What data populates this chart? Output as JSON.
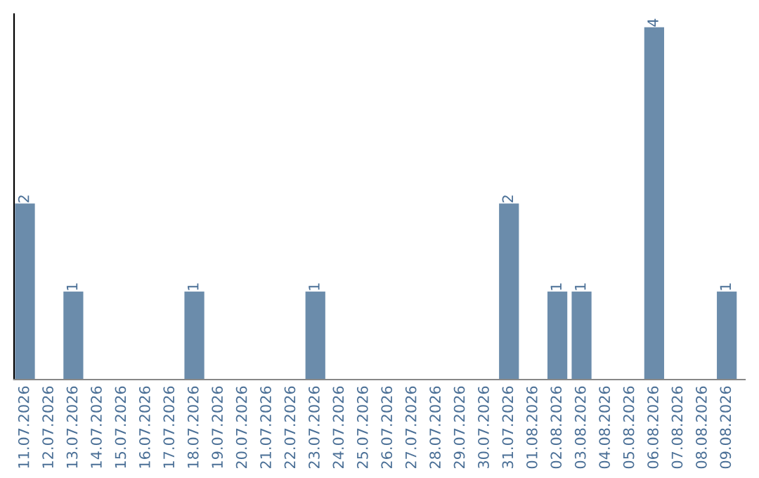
{
  "chart_data": {
    "type": "bar",
    "categories": [
      "11.07.2026",
      "12.07.2026",
      "13.07.2026",
      "14.07.2026",
      "15.07.2026",
      "16.07.2026",
      "17.07.2026",
      "18.07.2026",
      "19.07.2026",
      "20.07.2026",
      "21.07.2026",
      "22.07.2026",
      "23.07.2026",
      "24.07.2026",
      "25.07.2026",
      "26.07.2026",
      "27.07.2026",
      "28.07.2026",
      "29.07.2026",
      "30.07.2026",
      "31.07.2026",
      "01.08.2026",
      "02.08.2026",
      "03.08.2026",
      "04.08.2026",
      "05.08.2026",
      "06.08.2026",
      "07.08.2026",
      "08.08.2026",
      "09.08.2026"
    ],
    "values": [
      2,
      0,
      1,
      0,
      0,
      0,
      0,
      1,
      0,
      0,
      0,
      0,
      1,
      0,
      0,
      0,
      0,
      0,
      0,
      0,
      2,
      0,
      1,
      1,
      0,
      0,
      4,
      0,
      0,
      1
    ],
    "value_labels": [
      "2",
      null,
      "1",
      null,
      null,
      null,
      null,
      "1",
      null,
      null,
      null,
      null,
      "1",
      null,
      null,
      null,
      null,
      null,
      null,
      null,
      "2",
      null,
      "1",
      "1",
      null,
      null,
      "4",
      null,
      null,
      "1"
    ],
    "color": "#6b8cab",
    "ylim": [
      0,
      4.15
    ],
    "tick_labels": "x",
    "grid": false,
    "legend": false
  }
}
